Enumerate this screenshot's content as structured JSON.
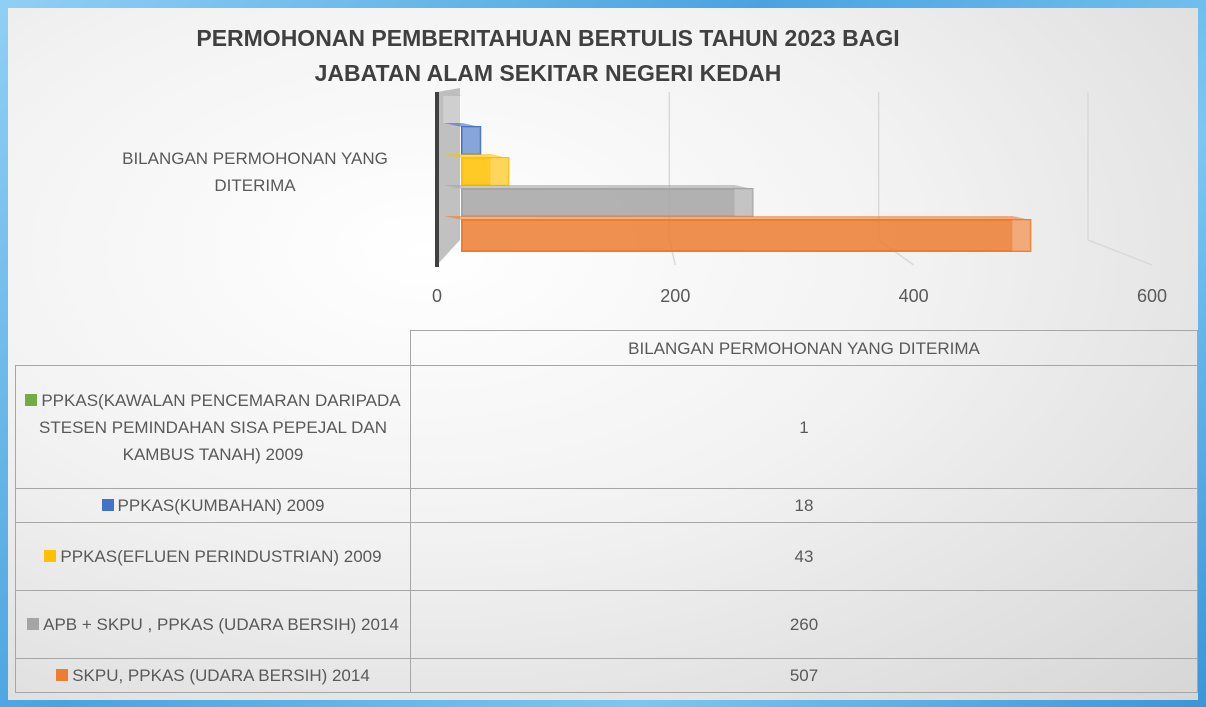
{
  "chart_data": {
    "type": "bar3d_horizontal",
    "title": [
      "PERMOHONAN PEMBERITAHUAN BERTULIS TAHUN 2023 BAGI",
      "JABATAN ALAM SEKITAR NEGERI KEDAH"
    ],
    "categories": [
      "BILANGAN PERMOHONAN YANG DITERIMA"
    ],
    "series": [
      {
        "name": "PPKAS(KAWALAN PENCEMARAN DARIPADA STESEN PEMINDAHAN SISA PEPEJAL DAN KAMBUS TANAH) 2009",
        "color": "#70ad47",
        "values": [
          1
        ]
      },
      {
        "name": "PPKAS(KUMBAHAN) 2009",
        "color": "#4472c4",
        "values": [
          18
        ]
      },
      {
        "name": "PPKAS(EFLUEN PERINDUSTRIAN) 2009",
        "color": "#ffc000",
        "values": [
          43
        ]
      },
      {
        "name": "APB + SKPU , PPKAS (UDARA BERSIH) 2014",
        "color": "#a5a5a5",
        "values": [
          260
        ]
      },
      {
        "name": "SKPU, PPKAS (UDARA BERSIH) 2014",
        "color": "#ed7d31",
        "values": [
          507
        ]
      }
    ],
    "xlim": [
      0,
      600
    ],
    "xticks": [
      0,
      200,
      400,
      600
    ],
    "grid": true,
    "data_table": true
  }
}
